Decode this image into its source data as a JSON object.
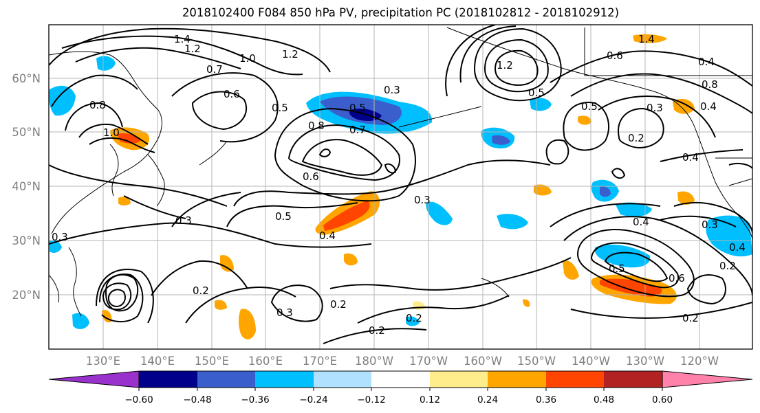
{
  "title": "2018102400 F084 850 hPa PV, precipitation PC (2018102812 - 2018102912)",
  "map": {
    "lat_labels": [
      "60°N",
      "50°N",
      "40°N",
      "30°N",
      "20°N"
    ],
    "lon_labels": [
      "130°E",
      "140°E",
      "150°E",
      "160°E",
      "170°E",
      "180°W",
      "170°W",
      "160°W",
      "150°W",
      "140°W",
      "130°W",
      "120°W"
    ],
    "contour_labels": [
      "1.4",
      "1.2",
      "1.0",
      "0.7",
      "1.2",
      "0.6",
      "0.5",
      "0.8",
      "0.7",
      "0.5",
      "0.3",
      "0.8",
      "1.0",
      "0.6",
      "0.3",
      "0.5",
      "0.4",
      "0.3",
      "0.2",
      "0.3",
      "0.2",
      "0.2",
      "0.2",
      "1.2",
      "0.5",
      "0.5",
      "0.2",
      "0.4",
      "0.4",
      "0.5",
      "0.6",
      "0.3",
      "0.2",
      "0.4",
      "0.2",
      "1.4",
      "0.6",
      "0.8",
      "0.4",
      "0.3",
      "0.4",
      "0.3"
    ]
  },
  "colorbar": {
    "ticks": [
      "−0.60",
      "−0.48",
      "−0.36",
      "−0.24",
      "−0.12",
      "0.12",
      "0.24",
      "0.36",
      "0.48",
      "0.60"
    ],
    "colors": [
      "#9932CC",
      "#00008B",
      "#3A5FCD",
      "#00BFFF",
      "#B0E2FF",
      "#FFFFFF",
      "#FFEC8B",
      "#FFA500",
      "#FF4500",
      "#B22222",
      "#FF82AB"
    ]
  }
}
